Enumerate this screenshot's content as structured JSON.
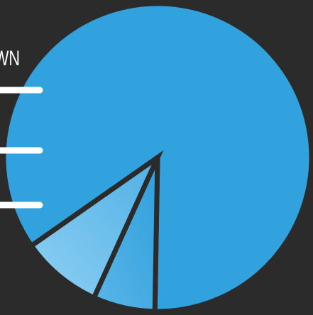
{
  "chart_data": {
    "type": "pie",
    "slices": [
      {
        "label": "",
        "value": 85,
        "color": "#31a2dd"
      },
      {
        "label": "",
        "value": 6.5,
        "color": "#3fa8e2"
      },
      {
        "label": "",
        "value": 8.5,
        "color": "#7fc8ef"
      }
    ],
    "legend_text": "WN",
    "colors": {
      "background": "#2b2b2b",
      "separator": "#2b2b2b",
      "legend_line": "#ffffff"
    }
  }
}
